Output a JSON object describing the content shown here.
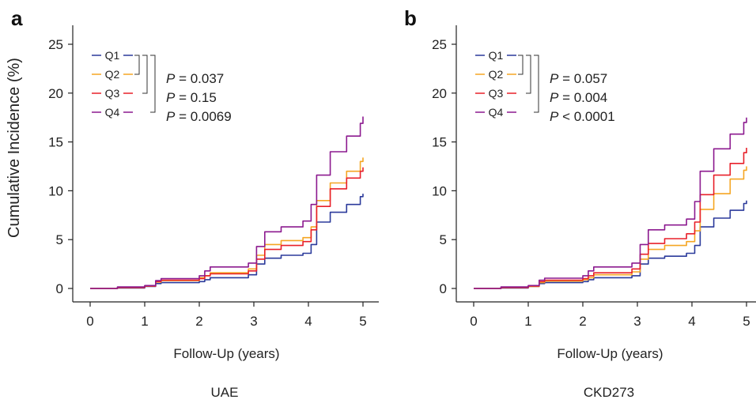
{
  "colors": {
    "Q1": "#2b3a9b",
    "Q2": "#f5a623",
    "Q3": "#e8202a",
    "Q4": "#8c1a8f",
    "axis": "#222222"
  },
  "shared": {
    "ylabel": "Cumulative Incidence (%)",
    "xlabel": "Follow-Up (years)",
    "y_ticks": [
      "0",
      "5",
      "10",
      "15",
      "20",
      "25"
    ],
    "x_ticks": [
      "0",
      "1",
      "2",
      "3",
      "4",
      "5"
    ]
  },
  "chart_data": [
    {
      "type": "line",
      "panel_label": "a",
      "caption": "UAE",
      "xlim": [
        0,
        5
      ],
      "ylim": [
        0,
        26
      ],
      "legend": [
        "Q1",
        "Q2",
        "Q3",
        "Q4"
      ],
      "p_values": [
        {
          "symbol": "P",
          "text": " = 0.037"
        },
        {
          "symbol": "P",
          "text": " = 0.15"
        },
        {
          "symbol": "P",
          "text": " = 0.0069"
        }
      ],
      "series": [
        {
          "name": "Q1",
          "x": [
            0,
            0.5,
            1.0,
            1.2,
            1.3,
            2.0,
            2.1,
            2.2,
            2.9,
            3.05,
            3.2,
            3.5,
            3.9,
            4.05,
            4.15,
            4.4,
            4.7,
            4.95,
            5.0
          ],
          "y": [
            0,
            0.05,
            0.2,
            0.5,
            0.6,
            0.7,
            0.9,
            1.1,
            1.4,
            2.5,
            3.1,
            3.4,
            3.6,
            4.5,
            6.8,
            7.8,
            8.6,
            9.4,
            9.7
          ]
        },
        {
          "name": "Q2",
          "x": [
            0,
            0.5,
            1.0,
            1.2,
            1.3,
            2.0,
            2.1,
            2.2,
            2.9,
            3.05,
            3.2,
            3.5,
            3.9,
            4.05,
            4.15,
            4.4,
            4.7,
            4.95,
            5.0
          ],
          "y": [
            0,
            0.1,
            0.25,
            0.65,
            0.8,
            1.1,
            1.3,
            1.6,
            2.0,
            3.4,
            4.5,
            4.9,
            5.2,
            6.3,
            9.0,
            10.8,
            12.0,
            13.0,
            13.4
          ]
        },
        {
          "name": "Q3",
          "x": [
            0,
            0.5,
            1.0,
            1.2,
            1.3,
            2.0,
            2.1,
            2.2,
            2.9,
            3.05,
            3.2,
            3.5,
            3.9,
            4.05,
            4.15,
            4.4,
            4.7,
            4.95,
            5.0
          ],
          "y": [
            0,
            0.1,
            0.25,
            0.7,
            0.85,
            1.0,
            1.3,
            1.5,
            1.8,
            3.0,
            4.0,
            4.4,
            4.8,
            6.0,
            8.4,
            10.2,
            11.3,
            12.0,
            12.4
          ]
        },
        {
          "name": "Q4",
          "x": [
            0,
            0.5,
            1.0,
            1.2,
            1.3,
            2.0,
            2.1,
            2.2,
            2.9,
            3.05,
            3.2,
            3.5,
            3.9,
            4.05,
            4.15,
            4.4,
            4.7,
            4.95,
            5.0
          ],
          "y": [
            0,
            0.15,
            0.3,
            0.8,
            1.0,
            1.3,
            1.8,
            2.2,
            2.6,
            4.3,
            5.8,
            6.3,
            6.9,
            8.6,
            11.6,
            14.0,
            15.6,
            16.9,
            17.6
          ]
        }
      ]
    },
    {
      "type": "line",
      "panel_label": "b",
      "caption": "CKD273",
      "xlim": [
        0,
        5
      ],
      "ylim": [
        0,
        26
      ],
      "legend": [
        "Q1",
        "Q2",
        "Q3",
        "Q4"
      ],
      "p_values": [
        {
          "symbol": "P",
          "text": " = 0.057"
        },
        {
          "symbol": "P",
          "text": " = 0.004"
        },
        {
          "symbol": "P",
          "text": " < 0.0001"
        }
      ],
      "series": [
        {
          "name": "Q1",
          "x": [
            0,
            0.5,
            1.0,
            1.2,
            1.3,
            2.0,
            2.1,
            2.2,
            2.9,
            3.05,
            3.2,
            3.5,
            3.9,
            4.05,
            4.15,
            4.4,
            4.7,
            4.95,
            5.0
          ],
          "y": [
            0,
            0.05,
            0.2,
            0.5,
            0.6,
            0.7,
            0.9,
            1.1,
            1.3,
            2.5,
            3.1,
            3.3,
            3.6,
            4.4,
            6.3,
            7.2,
            8.0,
            8.7,
            9.0
          ]
        },
        {
          "name": "Q2",
          "x": [
            0,
            0.5,
            1.0,
            1.2,
            1.3,
            2.0,
            2.1,
            2.2,
            2.9,
            3.05,
            3.2,
            3.5,
            3.9,
            4.05,
            4.15,
            4.4,
            4.7,
            4.95,
            5.0
          ],
          "y": [
            0,
            0.1,
            0.2,
            0.6,
            0.75,
            0.9,
            1.1,
            1.4,
            1.7,
            3.0,
            4.0,
            4.4,
            4.8,
            5.9,
            8.1,
            9.7,
            11.2,
            12.1,
            12.5
          ]
        },
        {
          "name": "Q3",
          "x": [
            0,
            0.5,
            1.0,
            1.2,
            1.3,
            2.0,
            2.1,
            2.2,
            2.9,
            3.05,
            3.2,
            3.5,
            3.9,
            4.05,
            4.15,
            4.4,
            4.7,
            4.95,
            5.0
          ],
          "y": [
            0,
            0.1,
            0.25,
            0.7,
            0.85,
            1.0,
            1.3,
            1.6,
            2.0,
            3.5,
            4.6,
            5.1,
            5.6,
            6.8,
            9.6,
            11.6,
            12.8,
            13.9,
            14.4
          ]
        },
        {
          "name": "Q4",
          "x": [
            0,
            0.5,
            1.0,
            1.2,
            1.3,
            2.0,
            2.1,
            2.2,
            2.9,
            3.05,
            3.2,
            3.5,
            3.9,
            4.05,
            4.15,
            4.4,
            4.7,
            4.95,
            5.0
          ],
          "y": [
            0,
            0.15,
            0.3,
            0.85,
            1.05,
            1.3,
            1.8,
            2.2,
            2.6,
            4.5,
            6.0,
            6.5,
            7.1,
            8.9,
            12.0,
            14.3,
            15.8,
            17.0,
            17.5
          ]
        }
      ]
    }
  ]
}
